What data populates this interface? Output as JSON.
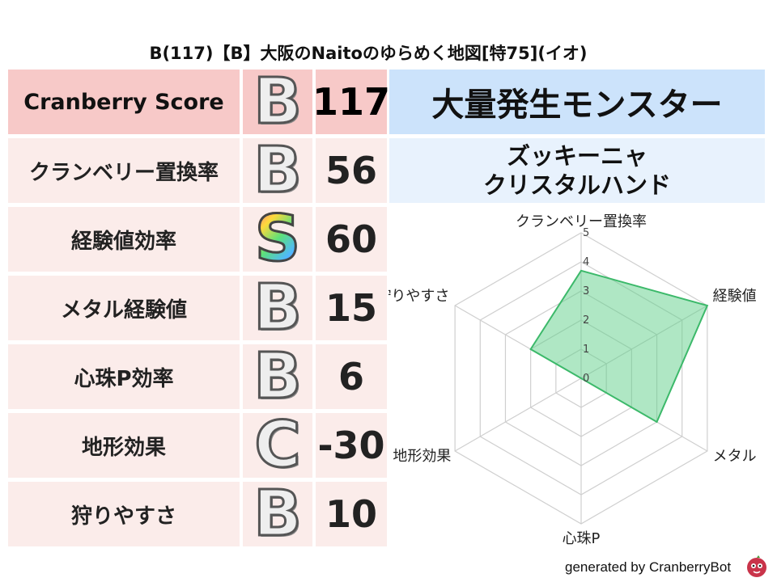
{
  "title": "B(117)【B】大阪のNaitoのゆらめく地図[特75](イオ)",
  "score": {
    "label": "Cranberry Score",
    "grade": "B",
    "value": "117"
  },
  "rows": [
    {
      "label": "クランベリー置換率",
      "grade": "B",
      "value": "56"
    },
    {
      "label": "経験値効率",
      "grade": "S",
      "value": "60"
    },
    {
      "label": "メタル経験値",
      "grade": "B",
      "value": "15"
    },
    {
      "label": "心珠P効率",
      "grade": "B",
      "value": "6"
    },
    {
      "label": "地形効果",
      "grade": "C",
      "value": "-30"
    },
    {
      "label": "狩りやすさ",
      "grade": "B",
      "value": "10"
    }
  ],
  "boss": {
    "heading": "大量発生モンスター",
    "names": [
      "ズッキーニャ",
      "クリスタルハンド"
    ]
  },
  "chart_data": {
    "type": "radar",
    "axes": [
      "クランベリー置換率",
      "経験値",
      "メタル",
      "心珠P",
      "地形効果",
      "狩りやすさ"
    ],
    "values": [
      3.7,
      5.0,
      3.0,
      0.0,
      0.0,
      2.0
    ],
    "rmin": 0,
    "rmax": 5,
    "ticks": [
      "0",
      "1",
      "2",
      "3",
      "4",
      "5"
    ],
    "fill_color": "#5fd08a",
    "stroke_color": "#3cb96a"
  },
  "footer": "generated by CranberryBot",
  "colors": {
    "score_bg": "#f7c9c8",
    "row_bg": "#fbecea",
    "boss_head_bg": "#cce3fb",
    "boss_list_bg": "#e8f2fd"
  }
}
